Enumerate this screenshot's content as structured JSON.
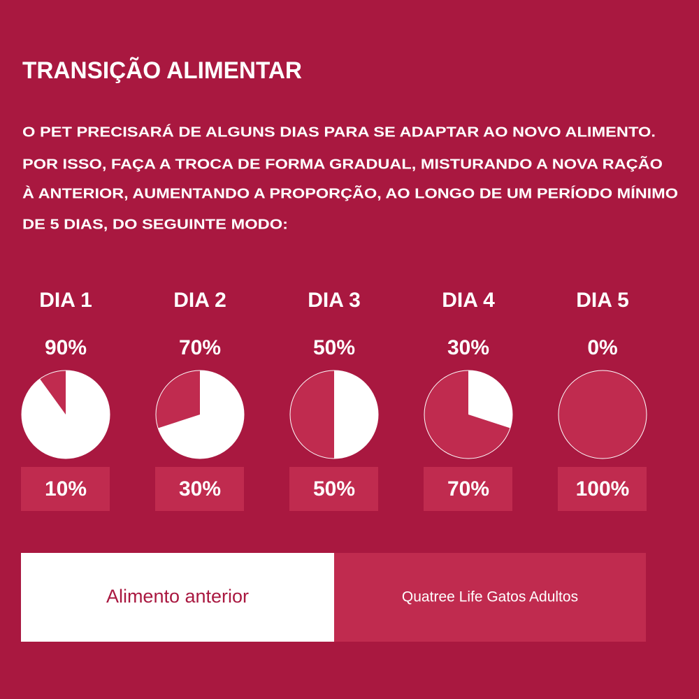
{
  "title": "TRANSIÇÃO ALIMENTAR",
  "intro": [
    "O PET PRECISARÁ DE ALGUNS DIAS PARA SE ADAPTAR AO NOVO ALIMENTO.",
    "POR ISSO, FAÇA A TROCA DE FORMA GRADUAL, MISTURANDO A NOVA RAÇÃO",
    "À ANTERIOR, AUMENTANDO A PROPORÇÃO, AO LONGO DE UM PERÍODO MÍNIMO",
    "DE 5 DIAS, DO SEGUINTE MODO:"
  ],
  "days": [
    {
      "label": "DIA 1",
      "previous": 90,
      "previous_label": "90%",
      "new": 10,
      "new_label": "10%"
    },
    {
      "label": "DIA 2",
      "previous": 70,
      "previous_label": "70%",
      "new": 30,
      "new_label": "30%"
    },
    {
      "label": "DIA 3",
      "previous": 50,
      "previous_label": "50%",
      "new": 50,
      "new_label": "50%"
    },
    {
      "label": "DIA 4",
      "previous": 30,
      "previous_label": "30%",
      "new": 70,
      "new_label": "70%"
    },
    {
      "label": "DIA 5",
      "previous": 0,
      "previous_label": "0%",
      "new": 100,
      "new_label": "100%"
    }
  ],
  "legend": {
    "previous": "Alimento anterior",
    "new": "Quatree Life Gatos Adultos"
  }
}
